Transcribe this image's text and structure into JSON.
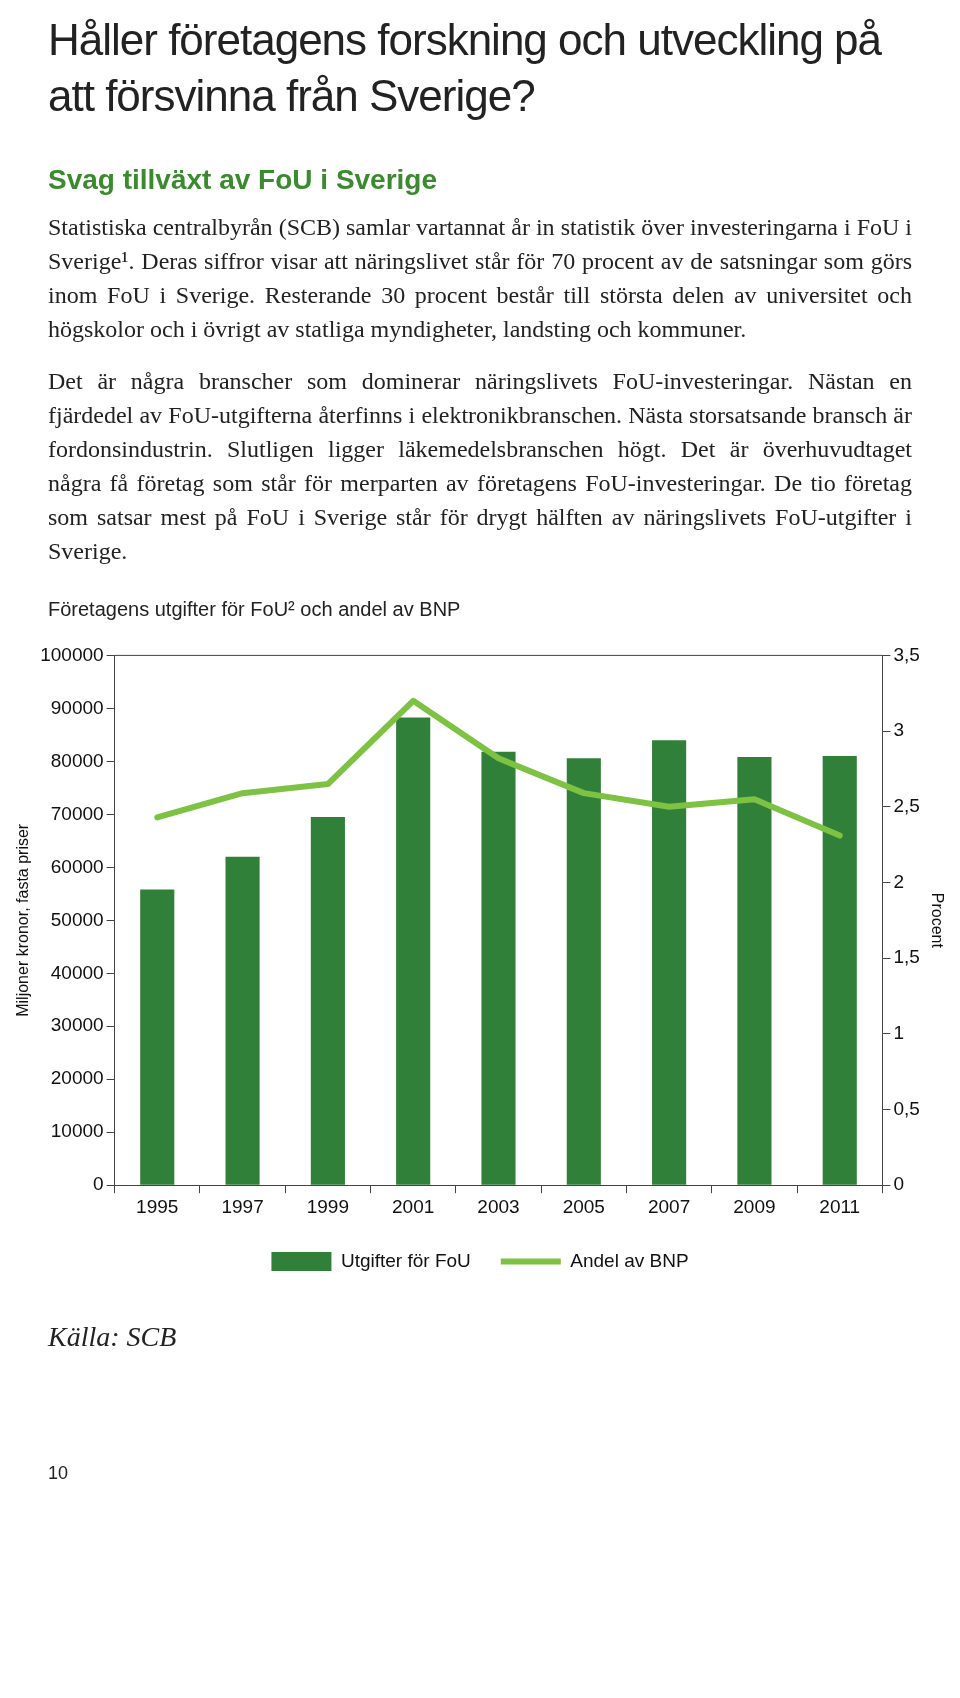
{
  "chart_data": {
    "type": "bar",
    "title": "Företagens utgifter för FoU² och andel av BNP",
    "annotations": [
      "Håller företagens forskning och utveckling på att försvinna från Sverige?",
      "Svag tillväxt av FoU i Sverige",
      "Statistiska centralbyrån (SCB) samlar vartannat år in statistik över investeringarna i FoU i Sverige¹. Deras siffror visar att näringslivet står för 70 procent av de satsningar som görs inom FoU i Sverige. Resterande 30 procent består till största delen av universitet och högskolor och i övrigt av statliga myndigheter, landsting och kommuner.",
      "Det är några branscher som dominerar näringslivets FoU-investeringar. Nästan en fjärdedel av FoU-utgifterna återfinns i elektronikbranschen. Nästa storsatsande bransch är fordonsindustrin. Slutligen ligger läkemedelsbranschen högt. Det är överhuvudtaget några få företag som står för merparten av företagens FoU-investeringar. De tio företag som satsar mest på FoU i Sverige står för drygt hälften av näringslivets FoU-utgifter i Sverige.",
      "Källa: SCB",
      "10"
    ],
    "ylabel": "Miljoner kronor, fasta priser",
    "y2label": "Procent",
    "categories": [
      "1995",
      "1997",
      "1999",
      "2001",
      "2003",
      "2005",
      "2007",
      "2009",
      "2011"
    ],
    "series": [
      {
        "name": "Utgifter för FoU",
        "color": "#31803a",
        "values": [
          55800,
          62000,
          69500,
          88300,
          81800,
          80600,
          84000,
          80800,
          81000
        ]
      },
      {
        "name": "Andel av BNP",
        "type": "line",
        "axis": "y2",
        "color": "#7dc242",
        "values": [
          2.43,
          2.59,
          2.65,
          3.2,
          2.82,
          2.59,
          2.5,
          2.55,
          2.31
        ]
      }
    ],
    "ylim": [
      0,
      100000
    ],
    "yticks": [
      0,
      10000,
      20000,
      30000,
      40000,
      50000,
      60000,
      70000,
      80000,
      90000,
      100000
    ],
    "y2lim": [
      0,
      3.5
    ],
    "y2ticks": [
      0,
      {
        "value": 0.5,
        "label": "0,5"
      },
      1,
      {
        "value": 1.5,
        "label": "1,5"
      },
      2,
      {
        "value": 2.5,
        "label": "2,5"
      },
      3,
      {
        "value": 3.5,
        "label": "3,5"
      }
    ],
    "grid": false,
    "legend": "bottom",
    "marker": "none",
    "line_style": "solid"
  }
}
